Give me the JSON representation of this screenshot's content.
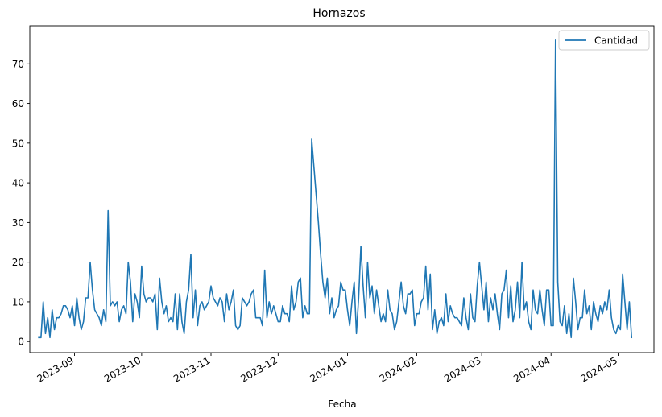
{
  "chart_data": {
    "type": "line",
    "title": "Hornazos",
    "xlabel": "Fecha",
    "ylabel": "",
    "ylim": [
      -2.8,
      79.6
    ],
    "xlim": [
      "2023-08-12",
      "2024-05-17"
    ],
    "grid": false,
    "legend_position": "upper right",
    "xticks": [
      "2023-09",
      "2023-10",
      "2023-11",
      "2023-12",
      "2024-01",
      "2024-02",
      "2024-03",
      "2024-04",
      "2024-05"
    ],
    "xtick_dates": [
      "2023-09-01",
      "2023-10-01",
      "2023-11-01",
      "2023-12-01",
      "2024-01-01",
      "2024-02-01",
      "2024-03-01",
      "2024-04-01",
      "2024-05-01"
    ],
    "yticks": [
      0,
      10,
      20,
      30,
      40,
      50,
      60,
      70
    ],
    "series": [
      {
        "name": "Cantidad",
        "color": "#1f77b4",
        "start_date": "2023-08-16",
        "values": [
          1,
          1,
          10,
          2,
          6,
          1,
          8,
          3,
          6,
          6,
          7,
          9,
          9,
          8,
          6,
          9,
          4,
          11,
          6,
          3,
          5,
          11,
          11,
          20,
          13,
          8,
          7,
          6,
          4,
          8,
          5,
          33,
          9,
          10,
          9,
          10,
          5,
          8,
          9,
          7,
          20,
          15,
          5,
          12,
          10,
          6,
          19,
          12,
          10,
          11,
          11,
          10,
          12,
          3,
          16,
          10,
          7,
          9,
          5,
          6,
          5,
          12,
          3,
          12,
          5,
          2,
          10,
          13,
          22,
          6,
          13,
          4,
          9,
          10,
          8,
          9,
          10,
          14,
          11,
          10,
          9,
          11,
          10,
          5,
          12,
          8,
          10,
          13,
          4,
          3,
          4,
          11,
          10,
          9,
          10,
          12,
          13,
          6,
          6,
          6,
          4,
          18,
          6,
          10,
          7,
          9,
          7,
          5,
          5,
          9,
          7,
          7,
          5,
          14,
          8,
          10,
          15,
          16,
          6,
          9,
          7,
          7,
          51,
          44,
          37,
          30,
          22,
          15,
          11,
          16,
          7,
          11,
          6,
          8,
          9,
          15,
          13,
          13,
          8,
          4,
          10,
          15,
          2,
          11,
          24,
          14,
          6,
          20,
          11,
          14,
          7,
          13,
          9,
          5,
          7,
          5,
          13,
          8,
          7,
          3,
          5,
          10,
          15,
          9,
          7,
          12,
          12,
          13,
          4,
          7,
          7,
          10,
          11,
          19,
          8,
          17,
          3,
          8,
          2,
          5,
          6,
          4,
          12,
          5,
          9,
          7,
          6,
          6,
          5,
          4,
          11,
          6,
          3,
          12,
          6,
          5,
          14,
          20,
          14,
          8,
          15,
          5,
          11,
          8,
          12,
          7,
          3,
          12,
          13,
          18,
          6,
          14,
          5,
          8,
          15,
          6,
          20,
          8,
          10,
          5,
          3,
          13,
          8,
          7,
          13,
          8,
          4,
          13,
          13,
          4,
          4,
          76,
          15,
          5,
          4,
          9,
          2,
          7,
          1,
          16,
          10,
          3,
          6,
          6,
          13,
          7,
          9,
          3,
          10,
          7,
          5,
          9,
          7,
          10,
          8,
          13,
          6,
          3,
          2,
          4,
          3,
          17,
          10,
          3,
          10,
          1
        ]
      }
    ]
  }
}
